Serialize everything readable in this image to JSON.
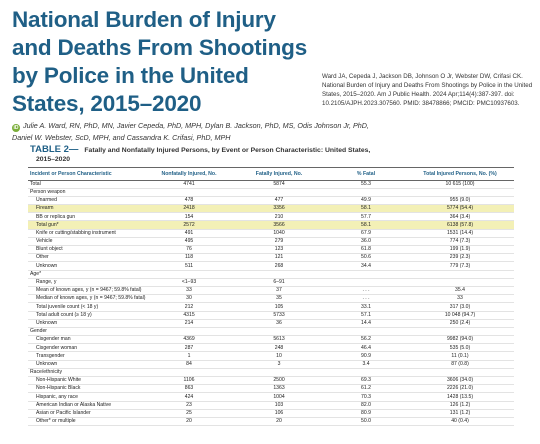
{
  "title": "National Burden of Injury and Deaths From Shootings by Police in the United States, 2015–2020",
  "citation": "Ward JA, Cepeda J, Jackson DB, Johnson O Jr, Webster DW, Crifasi CK. National Burden of Injury and Deaths From Shootings by Police in the United States, 2015–2020. Am J Public Health. 2024 Apr;114(4):387-397. doi: 10.2105/AJPH.2023.307560. PMID: 38478866; PMCID: PMC10937603.",
  "orcid_icon_glyph": "iD",
  "authors_line1": "Julie A. Ward, RN, PhD, MN, Javier Cepeda, PhD, MPH, Dylan B. Jackson, PhD, MS, Odis Johnson Jr, PhD,",
  "authors_line2": "Daniel W. Webster, ScD, MPH, and Cassandra K. Crifasi, PhD, MPH",
  "table": {
    "label": "TABLE 2—",
    "caption_line1": "Fatally and Nonfatally Injured Persons, by Event or Person Characteristic: United States,",
    "caption_line2": "2015–2020",
    "headers": [
      "Incident or Person Characteristic",
      "Nonfatally Injured, No.",
      "Fatally Injured, No.",
      "% Fatal",
      "Total Injured Persons, No. (%)"
    ],
    "rows": [
      {
        "label": "Total",
        "indent": false,
        "highlight": false,
        "cells": [
          "4741",
          "5874",
          "55.3",
          "10 615 (100)"
        ]
      },
      {
        "label": "Person weapon",
        "indent": false,
        "highlight": false,
        "cells": [
          "",
          "",
          "",
          ""
        ]
      },
      {
        "label": "Unarmed",
        "indent": true,
        "highlight": false,
        "cells": [
          "478",
          "477",
          "49.9",
          "955 (9.0)"
        ]
      },
      {
        "label": "Firearm",
        "indent": true,
        "highlight": true,
        "cells": [
          "2418",
          "3356",
          "58.1",
          "5774 (54.4)"
        ]
      },
      {
        "label": "BB or replica gun",
        "indent": true,
        "highlight": false,
        "cells": [
          "154",
          "210",
          "57.7",
          "364 (3.4)"
        ]
      },
      {
        "label": "Total gun*",
        "indent": true,
        "highlight": true,
        "cells": [
          "2572",
          "3566",
          "58.1",
          "6138 (57.8)"
        ]
      },
      {
        "label": "Knife or cutting/stabbing instrument",
        "indent": true,
        "highlight": false,
        "cells": [
          "491",
          "1040",
          "67.9",
          "1531 (14.4)"
        ]
      },
      {
        "label": "Vehicle",
        "indent": true,
        "highlight": false,
        "cells": [
          "495",
          "279",
          "36.0",
          "774 (7.3)"
        ]
      },
      {
        "label": "Blunt object",
        "indent": true,
        "highlight": false,
        "cells": [
          "76",
          "123",
          "61.8",
          "199 (1.9)"
        ]
      },
      {
        "label": "Other",
        "indent": true,
        "highlight": false,
        "cells": [
          "118",
          "121",
          "50.6",
          "239 (2.3)"
        ]
      },
      {
        "label": "Unknown",
        "indent": true,
        "highlight": false,
        "cells": [
          "511",
          "268",
          "34.4",
          "779 (7.3)"
        ]
      },
      {
        "label": "Age*",
        "indent": false,
        "highlight": false,
        "cells": [
          "",
          "",
          "",
          ""
        ]
      },
      {
        "label": "Range, y",
        "indent": true,
        "highlight": false,
        "cells": [
          "<1–93",
          "6–91",
          "",
          ""
        ]
      },
      {
        "label": "Mean of known ages, y (n = 9467; 59.8% fatal)",
        "indent": true,
        "highlight": false,
        "cells": [
          "33",
          "37",
          ". . .",
          "35.4"
        ]
      },
      {
        "label": "Median of known ages, y (n = 9467; 59.8% fatal)",
        "indent": true,
        "highlight": false,
        "cells": [
          "30",
          "35",
          ". . .",
          "33"
        ]
      },
      {
        "label": "Total juvenile count (< 18 y)",
        "indent": true,
        "highlight": false,
        "cells": [
          "212",
          "105",
          "33.1",
          "317 (3.0)"
        ]
      },
      {
        "label": "Total adult count (≥ 18 y)",
        "indent": true,
        "highlight": false,
        "cells": [
          "4315",
          "5733",
          "57.1",
          "10 048 (94.7)"
        ]
      },
      {
        "label": "Unknown",
        "indent": true,
        "highlight": false,
        "cells": [
          "214",
          "36",
          "14.4",
          "250 (2.4)"
        ]
      },
      {
        "label": "Gender",
        "indent": false,
        "highlight": false,
        "cells": [
          "",
          "",
          "",
          ""
        ]
      },
      {
        "label": "Cisgender man",
        "indent": true,
        "highlight": false,
        "cells": [
          "4369",
          "5613",
          "56.2",
          "9982 (94.0)"
        ]
      },
      {
        "label": "Cisgender woman",
        "indent": true,
        "highlight": false,
        "cells": [
          "287",
          "248",
          "46.4",
          "535 (5.0)"
        ]
      },
      {
        "label": "Transgender",
        "indent": true,
        "highlight": false,
        "cells": [
          "1",
          "10",
          "90.9",
          "11 (0.1)"
        ]
      },
      {
        "label": "Unknown",
        "indent": true,
        "highlight": false,
        "cells": [
          "84",
          "3",
          "3.4",
          "87 (0.8)"
        ]
      },
      {
        "label": "Race/ethnicity",
        "indent": false,
        "highlight": false,
        "cells": [
          "",
          "",
          "",
          ""
        ]
      },
      {
        "label": "Non-Hispanic White",
        "indent": true,
        "highlight": false,
        "cells": [
          "1106",
          "2500",
          "69.3",
          "3606 (34.0)"
        ]
      },
      {
        "label": "Non-Hispanic Black",
        "indent": true,
        "highlight": false,
        "cells": [
          "863",
          "1363",
          "61.2",
          "2226 (21.0)"
        ]
      },
      {
        "label": "Hispanic, any race",
        "indent": true,
        "highlight": false,
        "cells": [
          "424",
          "1004",
          "70.3",
          "1428 (13.5)"
        ]
      },
      {
        "label": "American Indian or Alaska Native",
        "indent": true,
        "highlight": false,
        "cells": [
          "23",
          "103",
          "82.0",
          "126 (1.2)"
        ]
      },
      {
        "label": "Asian or Pacific Islander",
        "indent": true,
        "highlight": false,
        "cells": [
          "25",
          "106",
          "80.9",
          "131 (1.2)"
        ]
      },
      {
        "label": "Other* or multiple",
        "indent": true,
        "highlight": false,
        "cells": [
          "20",
          "20",
          "50.0",
          "40 (0.4)"
        ]
      }
    ]
  }
}
